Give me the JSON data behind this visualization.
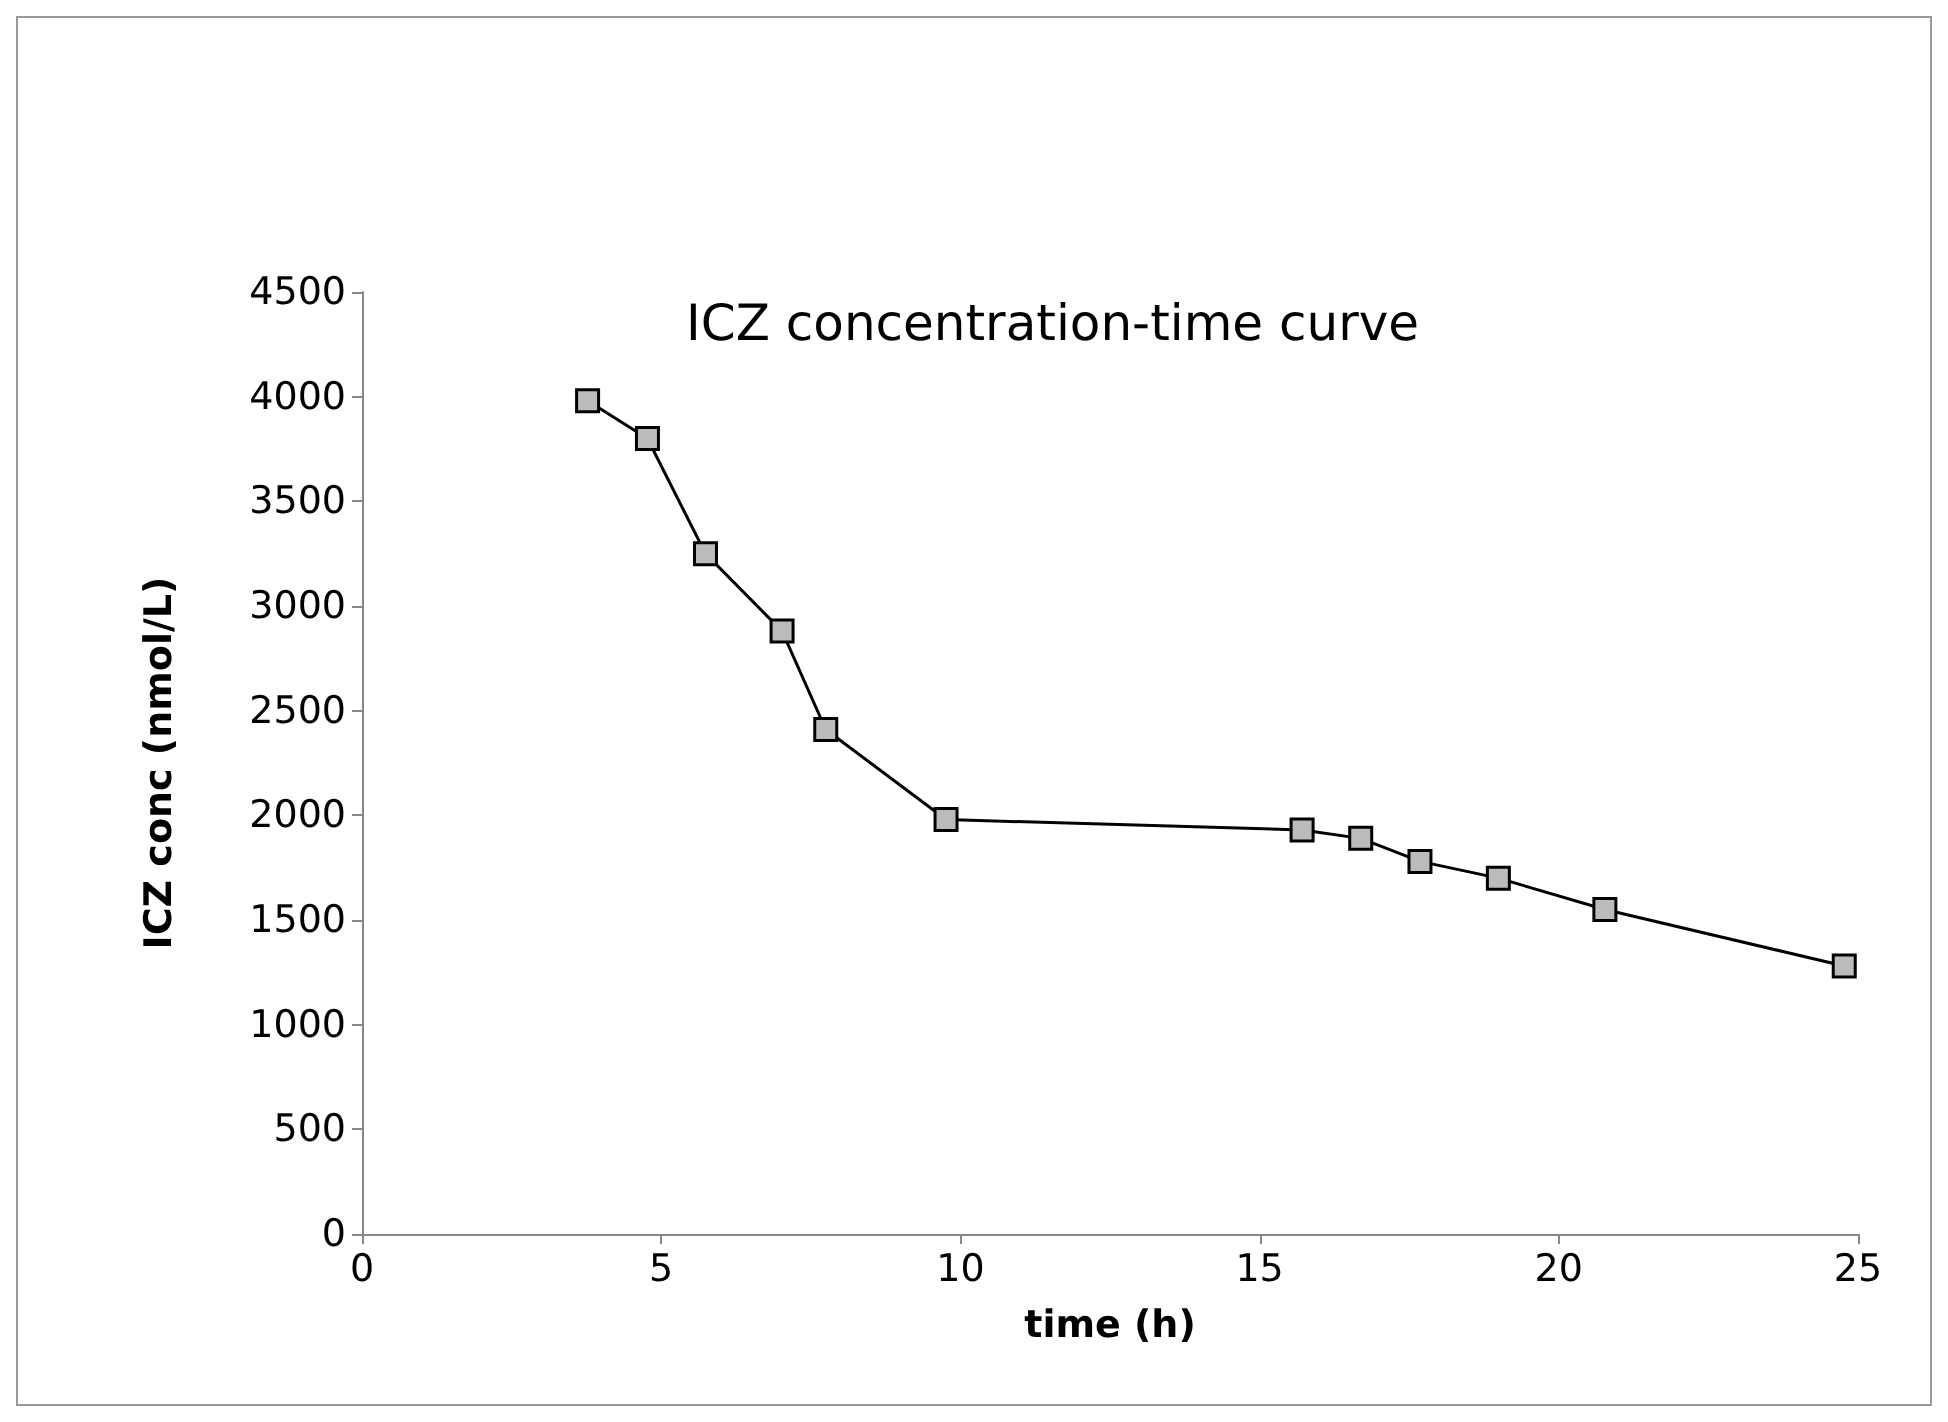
{
  "chart_data": {
    "type": "line",
    "title": "ICZ concentration-time curve",
    "xlabel": "time (h)",
    "ylabel": "ICZ conc (nmol/L)",
    "x": [
      3.77,
      4.77,
      5.74,
      7.02,
      7.75,
      9.76,
      15.71,
      16.69,
      17.68,
      18.99,
      20.77,
      24.77
    ],
    "series": [
      {
        "color": "#000000",
        "values": [
          3980,
          3800,
          3250,
          2880,
          2410,
          1980,
          1930,
          1890,
          1780,
          1700,
          1550,
          1280
        ]
      }
    ],
    "xlim": [
      0,
      25
    ],
    "xticks": [
      0,
      5,
      10,
      15,
      20,
      25
    ],
    "ylim": [
      0,
      4500
    ],
    "yticks": [
      0,
      500,
      1000,
      1500,
      2000,
      2500,
      3000,
      3500,
      4000,
      4500
    ],
    "grid": false,
    "marker": "square",
    "line_style": "solid"
  }
}
